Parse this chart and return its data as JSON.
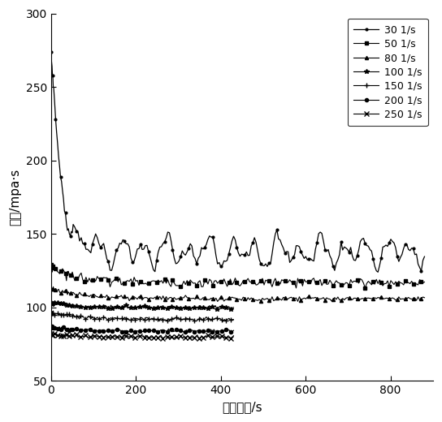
{
  "title": "",
  "xlabel": "剪切时间/s",
  "ylabel": "粘度/mpa·s",
  "xlim": [
    0,
    900
  ],
  "ylim": [
    50,
    300
  ],
  "yticks": [
    50,
    100,
    150,
    200,
    250,
    300
  ],
  "xticks": [
    0,
    200,
    400,
    600,
    800
  ],
  "color": "#000000",
  "series": [
    {
      "label": "30 1/s",
      "marker": ".",
      "markersize": 4,
      "linewidth": 0.9,
      "start": 262,
      "steady": 138,
      "noise_amp": 7,
      "tau": 25,
      "t_max": 880,
      "oscillate": true
    },
    {
      "label": "50 1/s",
      "marker": "s",
      "markersize": 3,
      "linewidth": 0.8,
      "start": 128,
      "steady": 117,
      "noise_amp": 3,
      "tau": 60,
      "t_max": 880,
      "oscillate": false
    },
    {
      "label": "80 1/s",
      "marker": "^",
      "markersize": 3,
      "linewidth": 0.8,
      "start": 113,
      "steady": 106,
      "noise_amp": 1.5,
      "tau": 80,
      "t_max": 880,
      "oscillate": false
    },
    {
      "label": "100 1/s",
      "marker": "*",
      "markersize": 4,
      "linewidth": 0.8,
      "start": 103,
      "steady": 100,
      "noise_amp": 1.2,
      "tau": 60,
      "t_max": 430,
      "oscillate": false
    },
    {
      "label": "150 1/s",
      "marker": "+",
      "markersize": 4,
      "linewidth": 0.8,
      "start": 97,
      "steady": 92,
      "noise_amp": 1.2,
      "tau": 60,
      "t_max": 430,
      "oscillate": false
    },
    {
      "label": "200 1/s",
      "marker": "o",
      "markersize": 3,
      "linewidth": 0.8,
      "start": 87,
      "steady": 84,
      "noise_amp": 1.0,
      "tau": 50,
      "t_max": 430,
      "oscillate": false
    },
    {
      "label": "250 1/s",
      "marker": "x",
      "markersize": 4,
      "linewidth": 0.8,
      "start": 82,
      "steady": 80,
      "noise_amp": 1.0,
      "tau": 50,
      "t_max": 430,
      "oscillate": false
    }
  ]
}
